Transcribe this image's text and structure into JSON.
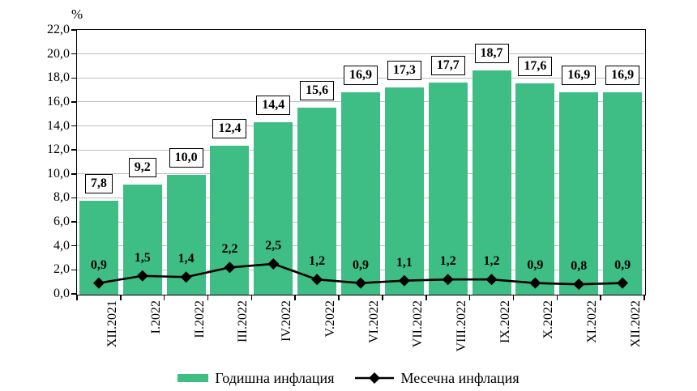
{
  "chart_data": {
    "type": "bar+line",
    "unit_label": "%",
    "categories": [
      "XII.2021",
      "I.2022",
      "II.2022",
      "III.2022",
      "IV.2022",
      "V.2022",
      "VI.2022",
      "VII.2022",
      "VIII.2022",
      "IX.2022",
      "X.2022",
      "XI.2022",
      "XII.2022"
    ],
    "series": [
      {
        "name": "Годишна инфлация",
        "type": "bar",
        "color": "#3ebd84",
        "values": [
          7.8,
          9.2,
          10.0,
          12.4,
          14.4,
          15.6,
          16.9,
          17.3,
          17.7,
          18.7,
          17.6,
          16.9,
          16.9
        ],
        "labels": [
          "7,8",
          "9,2",
          "10,0",
          "12,4",
          "14,4",
          "15,6",
          "16,9",
          "17,3",
          "17,7",
          "18,7",
          "17,6",
          "16,9",
          "16,9"
        ]
      },
      {
        "name": "Месечна инфлация",
        "type": "line",
        "color": "#000000",
        "marker": "diamond",
        "values": [
          0.9,
          1.5,
          1.4,
          2.2,
          2.5,
          1.2,
          0.9,
          1.1,
          1.2,
          1.2,
          0.9,
          0.8,
          0.9
        ],
        "labels": [
          "0,9",
          "1,5",
          "1,4",
          "2,2",
          "2,5",
          "1,2",
          "0,9",
          "1,1",
          "1,2",
          "1,2",
          "0,9",
          "0,8",
          "0,9"
        ]
      }
    ],
    "y_axis": {
      "min": 0,
      "max": 22,
      "step": 2,
      "tick_labels": [
        "0,0",
        "2,0",
        "4,0",
        "6,0",
        "8,0",
        "10,0",
        "12,0",
        "14,0",
        "16,0",
        "18,0",
        "20,0",
        "22,0"
      ]
    },
    "grid": true,
    "gridline_color": "#bfbfbf",
    "legend_position": "bottom",
    "legend": [
      {
        "label": "Годишна инфлация",
        "swatch": "bar",
        "color": "#3ebd84"
      },
      {
        "label": "Месечна инфлация",
        "swatch": "line-diamond",
        "color": "#000000"
      }
    ]
  }
}
